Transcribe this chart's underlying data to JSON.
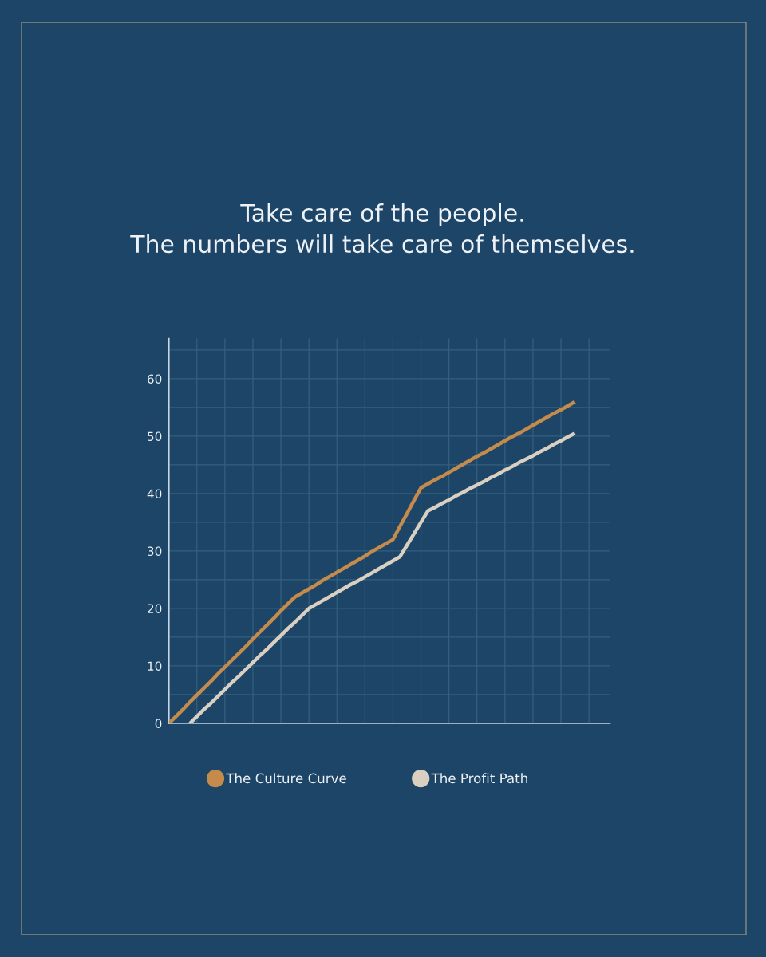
{
  "chart_data": {
    "type": "line",
    "title": "Take care of the people.\nThe numbers will take care of themselves.",
    "categories": [
      null,
      null,
      null,
      null,
      null,
      null,
      null,
      null,
      null,
      null,
      null,
      null,
      null,
      null,
      null,
      null,
      null,
      null,
      null,
      null,
      null,
      null,
      null,
      null,
      null,
      null,
      null,
      null,
      null,
      null,
      null,
      null,
      null,
      null,
      null,
      null,
      null,
      null,
      null,
      null,
      null,
      null,
      null,
      null,
      null,
      null,
      null,
      null,
      null,
      null,
      null,
      null,
      null,
      null,
      null,
      null,
      null,
      null,
      null,
      null,
      null,
      null,
      null,
      null
    ],
    "series": [
      {
        "name": "The Culture Curve",
        "color": "#c48b4c",
        "values": [
          0,
          1.2,
          2.4,
          3.7,
          4.9,
          6.1,
          7.3,
          8.6,
          9.8,
          11,
          12.2,
          13.4,
          14.7,
          15.9,
          17.1,
          18.3,
          19.6,
          20.8,
          22,
          22.7,
          23.4,
          24.1,
          24.9,
          25.6,
          26.3,
          27,
          27.7,
          28.4,
          29.1,
          29.9,
          30.6,
          31.3,
          32,
          34.3,
          36.5,
          38.8,
          41,
          41.7,
          42.4,
          43,
          43.7,
          44.4,
          45.1,
          45.8,
          46.5,
          47.1,
          47.8,
          48.5,
          49.2,
          49.9,
          50.5,
          51.2,
          51.9,
          52.6,
          53.3,
          54,
          54.6,
          55.3,
          56,
          null,
          null,
          null,
          null,
          null
        ]
      },
      {
        "name": "The Profit Path",
        "color": "#d9d0c2",
        "values": [
          null,
          null,
          null,
          0,
          1.2,
          2.4,
          3.5,
          4.7,
          5.9,
          7.1,
          8.2,
          9.4,
          10.6,
          11.8,
          12.9,
          14.1,
          15.3,
          16.5,
          17.6,
          18.8,
          20,
          20.7,
          21.4,
          22.1,
          22.8,
          23.5,
          24.2,
          24.8,
          25.5,
          26.2,
          26.9,
          27.6,
          28.3,
          29,
          31,
          33,
          35,
          37,
          37.6,
          38.3,
          38.9,
          39.6,
          40.2,
          40.9,
          41.5,
          42.1,
          42.8,
          43.4,
          44.1,
          44.7,
          45.4,
          46,
          46.6,
          47.3,
          47.9,
          48.6,
          49.2,
          49.9,
          50.5,
          null,
          null,
          null,
          null,
          null
        ]
      }
    ],
    "ylim": [
      0,
      67
    ],
    "yticks": [
      0,
      {
        "value": 5,
        "label": null
      },
      10,
      {
        "value": 15,
        "label": null
      },
      20,
      {
        "value": 25,
        "label": null
      },
      30,
      {
        "value": 35,
        "label": null
      },
      40,
      {
        "value": 45,
        "label": null
      },
      50,
      {
        "value": 55,
        "label": null
      },
      60,
      {
        "value": 65,
        "label": null
      }
    ],
    "grid": true,
    "legend": "bottom",
    "tick_labels": "y"
  }
}
